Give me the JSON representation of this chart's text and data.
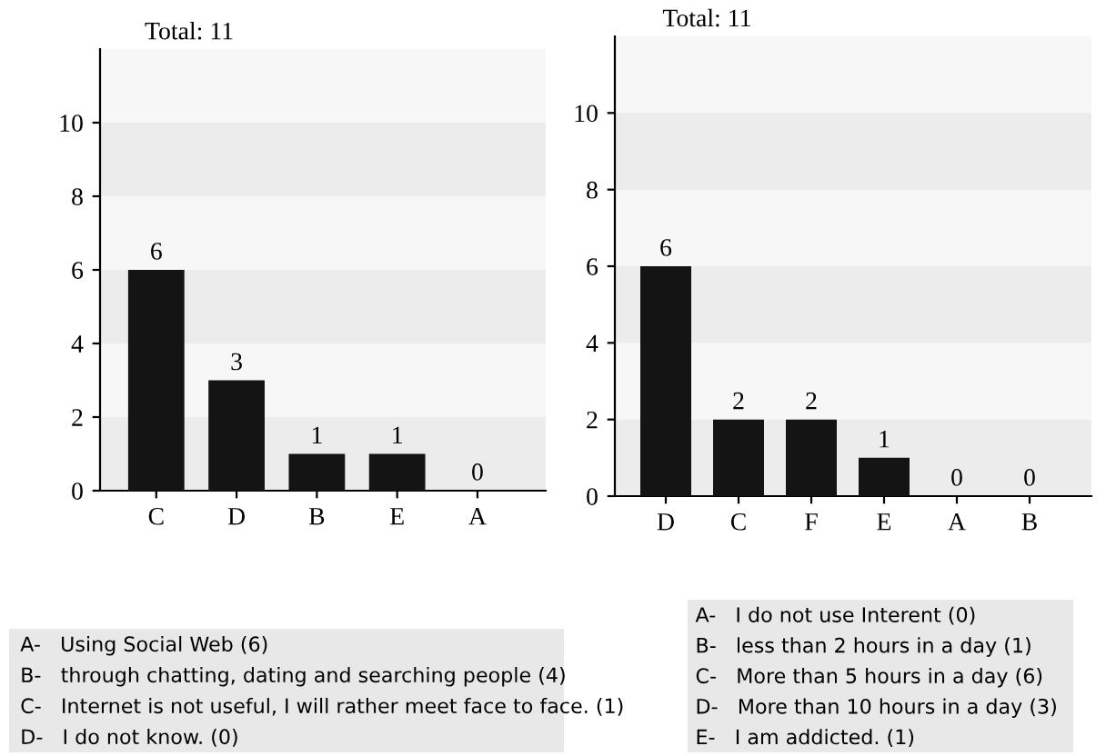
{
  "chart_data": [
    {
      "type": "bar",
      "title": "Total: 11",
      "categories": [
        "C",
        "D",
        "B",
        "E",
        "A"
      ],
      "values": [
        6,
        3,
        1,
        1,
        0
      ],
      "color": "#141414",
      "ylim": [
        0,
        12
      ],
      "yticks": [
        0,
        2,
        4,
        6,
        8,
        10
      ],
      "data_labels": true,
      "grid": false,
      "bands": [
        {
          "axis": "y",
          "from": 0,
          "to": 2,
          "color": "#ececec"
        },
        {
          "axis": "y",
          "from": 4,
          "to": 6,
          "color": "#ececec"
        },
        {
          "axis": "y",
          "from": 8,
          "to": 10,
          "color": "#ececec"
        }
      ],
      "annotations": [
        "A-   Using Social Web (6)",
        "B-   through chatting, dating and searching people (4)",
        "C-   Internet is not useful, I will rather meet face to face. (1)",
        "D-   I do not know. (0)"
      ]
    },
    {
      "type": "bar",
      "title": "Total: 11",
      "categories": [
        "D",
        "C",
        "F",
        "E",
        "A",
        "B"
      ],
      "values": [
        6,
        2,
        2,
        1,
        0,
        0
      ],
      "color": "#141414",
      "ylim": [
        0,
        12
      ],
      "yticks": [
        0,
        2,
        4,
        6,
        8,
        10
      ],
      "data_labels": true,
      "grid": false,
      "bands": [
        {
          "axis": "y",
          "from": 0,
          "to": 2,
          "color": "#ececec"
        },
        {
          "axis": "y",
          "from": 4,
          "to": 6,
          "color": "#ececec"
        },
        {
          "axis": "y",
          "from": 8,
          "to": 10,
          "color": "#ececec"
        }
      ],
      "annotations": [
        "A-   I do not use Interent (0)",
        "B-   less than 2 hours in a day (1)",
        "C-   More than 5 hours in a day (6)",
        "D-   More than 10 hours in a day (3)",
        "E-   I am addicted. (1)"
      ]
    }
  ]
}
